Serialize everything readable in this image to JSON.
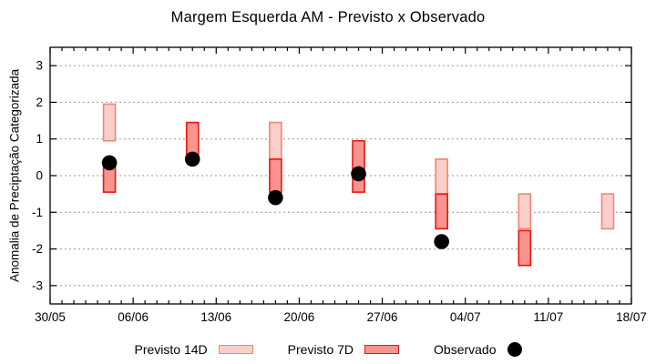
{
  "title": "Margem Esquerda AM - Previsto x Observado",
  "ylabel": "Anomalia de Preciptação Categorizada",
  "chart_data": {
    "type": "bar",
    "subtype": "floating-range-bars-with-points",
    "title": "Margem Esquerda AM - Previsto x Observado",
    "xlabel": "",
    "ylabel": "Anomalia de Preciptação Categorizada",
    "ylim": [
      -3.5,
      3.5
    ],
    "yticks": [
      -3,
      -2,
      -1,
      0,
      1,
      2,
      3
    ],
    "grid": "dotted horizontal at each ytick",
    "legend_position": "bottom",
    "x_axis": {
      "min_day": 0,
      "max_day": 49,
      "major_tick_every_days": 7,
      "minor_tick_every_days": 1,
      "major_tick_labels": [
        "30/05",
        "06/06",
        "13/06",
        "20/06",
        "27/06",
        "04/07",
        "11/07",
        "18/07"
      ]
    },
    "colors": {
      "previsto_14d_fill": "#fbcfc9",
      "previsto_14d_stroke": "#f08676",
      "previsto_7d_fill": "#f9938d",
      "previsto_7d_stroke": "#e9170e",
      "observado": "#000000",
      "grid": "#999999",
      "axis": "#000000"
    },
    "series": [
      {
        "name": "Previsto 14D",
        "kind": "range",
        "points": [
          {
            "day": 5,
            "date": "04/06",
            "low": 0.95,
            "high": 1.95
          },
          {
            "day": 19,
            "date": "18/06",
            "low": 0.45,
            "high": 1.45
          },
          {
            "day": 33,
            "date": "02/07",
            "low": -0.5,
            "high": 0.45
          },
          {
            "day": 40,
            "date": "09/07",
            "low": -1.45,
            "high": -0.5
          },
          {
            "day": 47,
            "date": "16/07",
            "low": -1.45,
            "high": -0.5
          }
        ]
      },
      {
        "name": "Previsto 7D",
        "kind": "range",
        "points": [
          {
            "day": 5,
            "date": "04/06",
            "low": -0.45,
            "high": 0.3
          },
          {
            "day": 12,
            "date": "11/06",
            "low": 0.45,
            "high": 1.45
          },
          {
            "day": 19,
            "date": "18/06",
            "low": -0.45,
            "high": 0.45
          },
          {
            "day": 26,
            "date": "25/06",
            "low": -0.45,
            "high": 0.95
          },
          {
            "day": 33,
            "date": "02/07",
            "low": -1.45,
            "high": -0.5
          },
          {
            "day": 40,
            "date": "09/07",
            "low": -2.45,
            "high": -1.5
          }
        ]
      },
      {
        "name": "Observado",
        "kind": "point",
        "points": [
          {
            "day": 5,
            "date": "04/06",
            "value": 0.35
          },
          {
            "day": 12,
            "date": "11/06",
            "value": 0.45
          },
          {
            "day": 19,
            "date": "18/06",
            "value": -0.6
          },
          {
            "day": 26,
            "date": "25/06",
            "value": 0.05
          },
          {
            "day": 33,
            "date": "02/07",
            "value": -1.8
          }
        ]
      }
    ]
  }
}
